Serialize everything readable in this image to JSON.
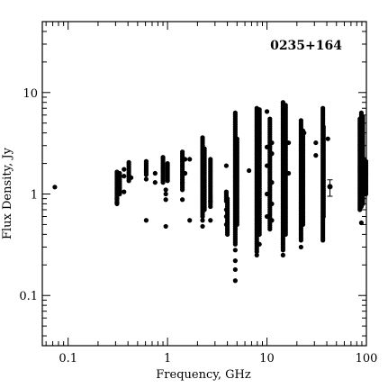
{
  "chart_data": {
    "type": "scatter",
    "title": "",
    "annotation": "0235+164",
    "xlabel": "Frequency, GHz",
    "ylabel": "Flux Density, Jy",
    "xscale": "log",
    "yscale": "log",
    "xlim": [
      0.055,
      100
    ],
    "ylim": [
      0.032,
      50
    ],
    "grid": false,
    "legend": "none",
    "x_ticks": [
      {
        "value": 0.1,
        "label": "0.1"
      },
      {
        "value": 1,
        "label": "1"
      },
      {
        "value": 10,
        "label": "10"
      },
      {
        "value": 100,
        "label": "100"
      }
    ],
    "y_ticks": [
      {
        "value": 0.1,
        "label": "0.1"
      },
      {
        "value": 1,
        "label": "1"
      },
      {
        "value": 10,
        "label": "10"
      }
    ],
    "columns": [
      {
        "x": 0.0735,
        "values": [
          1.17
        ]
      },
      {
        "x": 0.31,
        "min": 0.8,
        "max": 1.65,
        "values": [
          0.82,
          0.9
        ]
      },
      {
        "x": 0.33,
        "min": 1.0,
        "max": 1.6,
        "values": [
          1.05
        ]
      },
      {
        "x": 0.365,
        "values": [
          1.05,
          1.5,
          1.75
        ]
      },
      {
        "x": 0.408,
        "min": 1.35,
        "max": 2.05,
        "values": []
      },
      {
        "x": 0.43,
        "values": [
          1.45
        ]
      },
      {
        "x": 0.61,
        "min": 1.55,
        "max": 2.1,
        "values": [
          0.55,
          1.4
        ]
      },
      {
        "x": 0.75,
        "values": [
          1.3,
          1.6
        ]
      },
      {
        "x": 0.9,
        "min": 1.3,
        "max": 2.3,
        "values": [
          1.8
        ]
      },
      {
        "x": 0.96,
        "values": [
          0.48,
          0.88,
          1.0,
          1.1
        ]
      },
      {
        "x": 1.0,
        "min": 1.35,
        "max": 2.0,
        "values": []
      },
      {
        "x": 1.41,
        "min": 1.1,
        "max": 2.6,
        "values": [
          0.88,
          1.3
        ]
      },
      {
        "x": 1.5,
        "values": [
          1.6,
          2.2
        ]
      },
      {
        "x": 1.67,
        "values": [
          0.55,
          2.2
        ]
      },
      {
        "x": 2.25,
        "min": 0.6,
        "max": 3.6,
        "values": [
          0.48,
          0.55
        ]
      },
      {
        "x": 2.35,
        "min": 0.7,
        "max": 2.8,
        "values": []
      },
      {
        "x": 2.7,
        "min": 0.75,
        "max": 2.2,
        "values": [
          0.55,
          0.85
        ]
      },
      {
        "x": 3.9,
        "min": 0.85,
        "max": 1.05,
        "values": [
          0.6,
          0.7,
          0.5,
          1.9
        ]
      },
      {
        "x": 4.0,
        "min": 0.4,
        "max": 0.9,
        "values": []
      },
      {
        "x": 4.8,
        "min": 0.32,
        "max": 6.3,
        "values": [
          0.28,
          0.22,
          0.18,
          0.14
        ]
      },
      {
        "x": 5.0,
        "min": 0.5,
        "max": 3.5,
        "values": []
      },
      {
        "x": 6.6,
        "values": [
          1.7
        ]
      },
      {
        "x": 7.9,
        "min": 0.27,
        "max": 7.0,
        "values": [
          0.25
        ]
      },
      {
        "x": 8.4,
        "min": 0.4,
        "max": 6.8,
        "values": [
          0.32
        ]
      },
      {
        "x": 10.0,
        "values": [
          0.6,
          1.0,
          1.9,
          2.9,
          6.5
        ]
      },
      {
        "x": 10.7,
        "min": 0.45,
        "max": 5.5,
        "values": []
      },
      {
        "x": 11.2,
        "values": [
          0.55,
          0.8,
          1.3,
          2.5,
          3.2
        ]
      },
      {
        "x": 14.5,
        "min": 0.28,
        "max": 8.0,
        "values": [
          0.25
        ]
      },
      {
        "x": 15.4,
        "min": 0.4,
        "max": 7.5,
        "values": []
      },
      {
        "x": 16.5,
        "values": [
          1.6,
          3.2
        ]
      },
      {
        "x": 22.0,
        "min": 0.35,
        "max": 5.3,
        "values": [
          0.3
        ]
      },
      {
        "x": 23.0,
        "min": 0.5,
        "max": 4.2,
        "values": []
      },
      {
        "x": 23.6,
        "values": [
          4.0
        ]
      },
      {
        "x": 31.0,
        "values": [
          2.4,
          3.2
        ]
      },
      {
        "x": 36.5,
        "min": 0.35,
        "max": 7.0,
        "values": []
      },
      {
        "x": 37.0,
        "min": 0.6,
        "max": 4.6,
        "values": []
      },
      {
        "x": 41.0,
        "values": [
          3.5
        ]
      },
      {
        "x": 86.0,
        "min": 0.7,
        "max": 5.5,
        "values": []
      },
      {
        "x": 89.0,
        "min": 0.75,
        "max": 6.3,
        "values": [
          0.52
        ]
      },
      {
        "x": 92.0,
        "min": 0.8,
        "max": 5.8,
        "values": []
      },
      {
        "x": 95.0,
        "min": 1.0,
        "max": 2.2,
        "values": []
      },
      {
        "x": 99.0,
        "min": 1.0,
        "max": 2.1,
        "values": []
      }
    ],
    "error_point": {
      "x": 43.0,
      "y": 1.18,
      "y_low": 0.95,
      "y_high": 1.38
    }
  }
}
